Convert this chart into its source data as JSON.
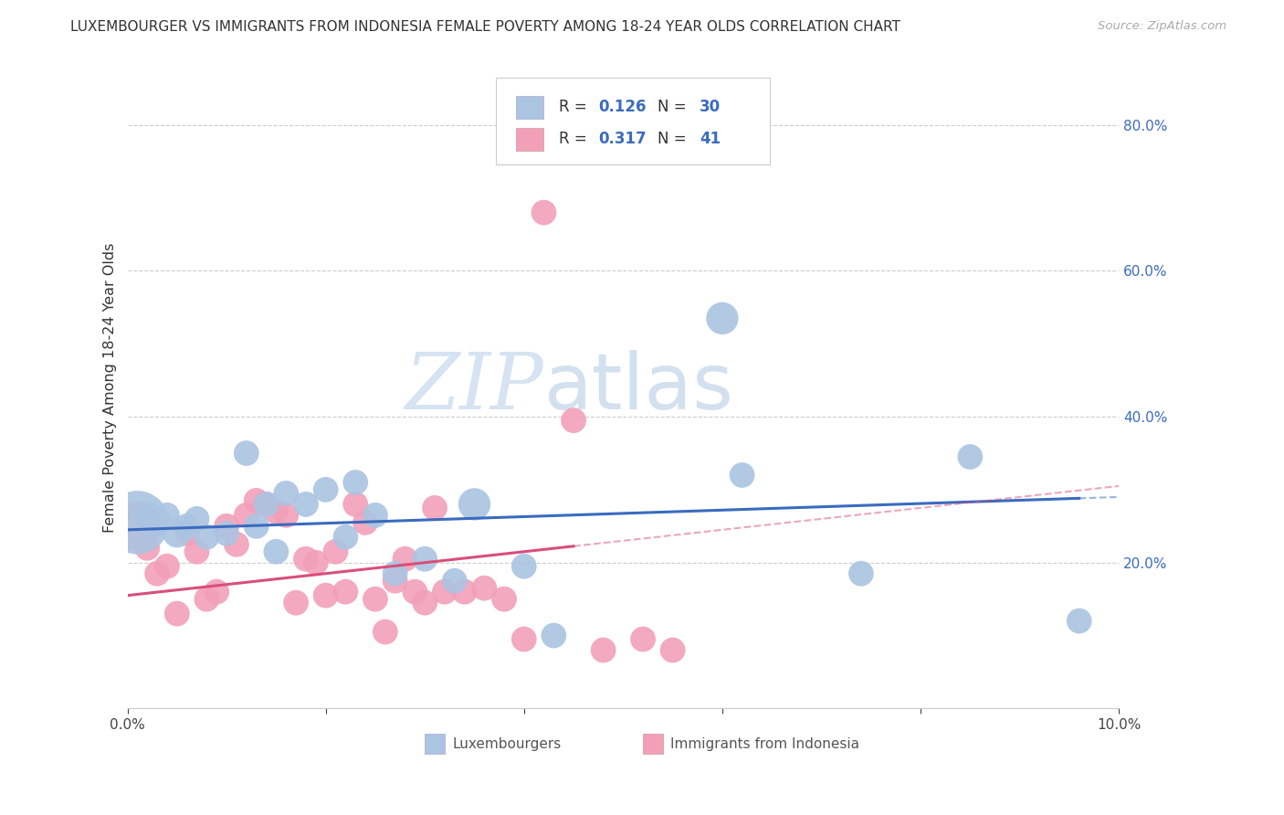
{
  "title": "LUXEMBOURGER VS IMMIGRANTS FROM INDONESIA FEMALE POVERTY AMONG 18-24 YEAR OLDS CORRELATION CHART",
  "source": "Source: ZipAtlas.com",
  "ylabel": "Female Poverty Among 18-24 Year Olds",
  "xlim": [
    0.0,
    0.1
  ],
  "ylim": [
    0.0,
    0.88
  ],
  "legend_R1": "R = 0.126",
  "legend_N1": "N = 30",
  "legend_R2": "R = 0.317",
  "legend_N2": "N = 41",
  "blue_color": "#aac4e2",
  "pink_color": "#f2a0b8",
  "blue_line_color": "#3a6bbf",
  "pink_line_color": "#d94f7a",
  "watermark_zip": "ZIP",
  "watermark_atlas": "atlas",
  "blue_scatter_x": [
    0.001,
    0.002,
    0.003,
    0.004,
    0.005,
    0.006,
    0.007,
    0.008,
    0.01,
    0.012,
    0.013,
    0.014,
    0.015,
    0.016,
    0.018,
    0.02,
    0.022,
    0.023,
    0.025,
    0.027,
    0.03,
    0.033,
    0.035,
    0.04,
    0.043,
    0.06,
    0.062,
    0.074,
    0.085,
    0.096
  ],
  "blue_scatter_y": [
    0.255,
    0.265,
    0.255,
    0.265,
    0.24,
    0.25,
    0.26,
    0.235,
    0.24,
    0.35,
    0.25,
    0.28,
    0.215,
    0.295,
    0.28,
    0.3,
    0.235,
    0.31,
    0.265,
    0.185,
    0.205,
    0.175,
    0.28,
    0.195,
    0.1,
    0.535,
    0.32,
    0.185,
    0.345,
    0.12
  ],
  "blue_scatter_size": [
    500,
    80,
    100,
    80,
    100,
    80,
    80,
    80,
    80,
    80,
    80,
    80,
    80,
    80,
    80,
    80,
    80,
    80,
    80,
    80,
    80,
    80,
    130,
    80,
    80,
    130,
    80,
    80,
    80,
    80
  ],
  "pink_scatter_x": [
    0.001,
    0.002,
    0.003,
    0.004,
    0.005,
    0.006,
    0.007,
    0.008,
    0.009,
    0.01,
    0.011,
    0.012,
    0.013,
    0.014,
    0.015,
    0.016,
    0.017,
    0.018,
    0.019,
    0.02,
    0.021,
    0.022,
    0.023,
    0.024,
    0.025,
    0.026,
    0.027,
    0.028,
    0.029,
    0.03,
    0.031,
    0.032,
    0.034,
    0.036,
    0.038,
    0.04,
    0.042,
    0.045,
    0.048,
    0.052,
    0.055
  ],
  "pink_scatter_y": [
    0.25,
    0.22,
    0.185,
    0.195,
    0.13,
    0.24,
    0.215,
    0.15,
    0.16,
    0.25,
    0.225,
    0.265,
    0.285,
    0.28,
    0.27,
    0.265,
    0.145,
    0.205,
    0.2,
    0.155,
    0.215,
    0.16,
    0.28,
    0.255,
    0.15,
    0.105,
    0.175,
    0.205,
    0.16,
    0.145,
    0.275,
    0.16,
    0.16,
    0.165,
    0.15,
    0.095,
    0.68,
    0.395,
    0.08,
    0.095,
    0.08
  ],
  "pink_scatter_size": [
    300,
    80,
    80,
    80,
    80,
    80,
    80,
    80,
    80,
    80,
    80,
    80,
    80,
    80,
    80,
    80,
    80,
    80,
    80,
    80,
    80,
    80,
    80,
    80,
    80,
    80,
    80,
    80,
    80,
    80,
    80,
    80,
    80,
    80,
    80,
    80,
    80,
    80,
    80,
    80,
    80
  ]
}
